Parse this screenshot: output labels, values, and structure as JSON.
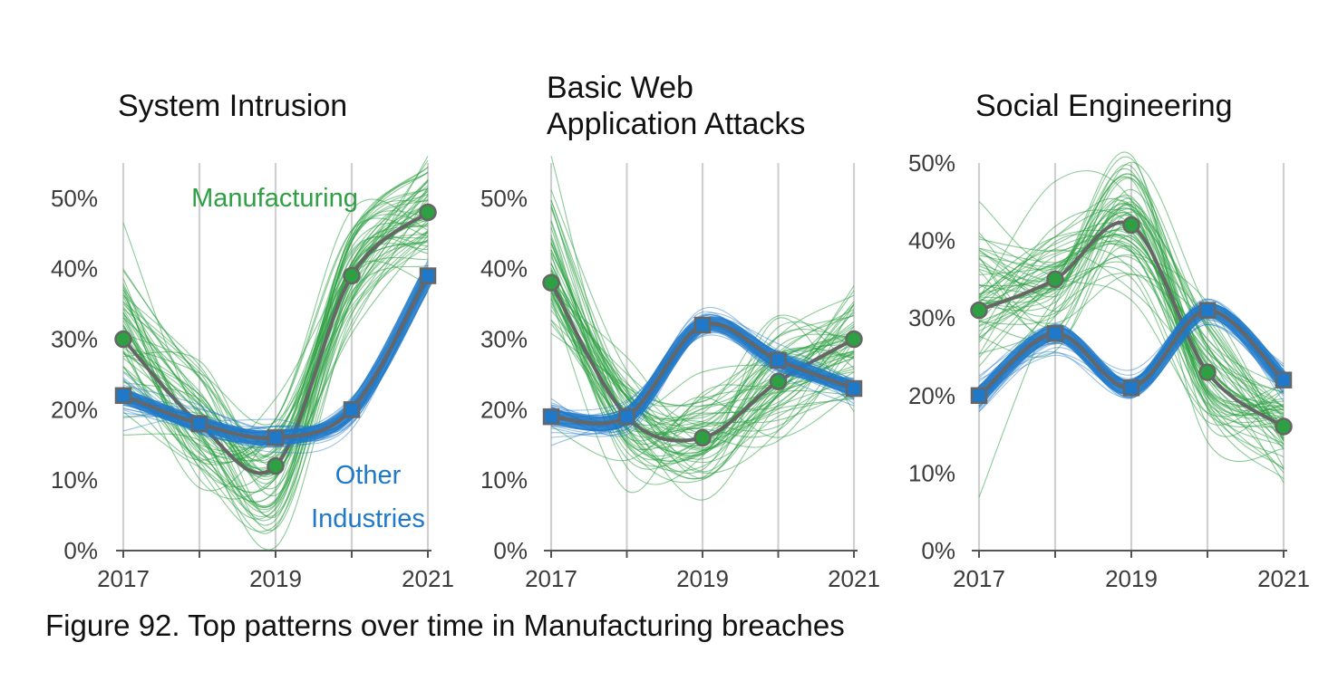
{
  "caption": "Figure 92. Top patterns over time in Manufacturing breaches",
  "colors": {
    "manufacturing": "#2ea043",
    "other_industries": "#1f78c8",
    "median_line": "#666666",
    "gridline": "#d0d0d0",
    "axis": "#555555"
  },
  "chart_data": [
    {
      "type": "line",
      "title_lines": [
        "System Intrusion"
      ],
      "x": [
        2017,
        2018,
        2019,
        2020,
        2021
      ],
      "x_tick_labels": [
        "2017",
        "2019",
        "2021"
      ],
      "y_tick_labels": [
        "0%",
        "10%",
        "20%",
        "30%",
        "40%",
        "50%"
      ],
      "ylim": [
        0,
        0.55
      ],
      "series": [
        {
          "key": "manufacturing",
          "name": "Manufacturing",
          "values": [
            0.3,
            0.18,
            0.12,
            0.39,
            0.48
          ],
          "spread": 0.055
        },
        {
          "key": "other_industries",
          "name": "Other Industries",
          "values": [
            0.22,
            0.18,
            0.16,
            0.2,
            0.39
          ],
          "spread": 0.012
        }
      ],
      "series_labels": {
        "manufacturing": [
          "Manufacturing"
        ],
        "other_industries": [
          "Other",
          "Industries"
        ]
      }
    },
    {
      "type": "line",
      "title_lines": [
        "Basic Web",
        "Application Attacks"
      ],
      "x": [
        2017,
        2018,
        2019,
        2020,
        2021
      ],
      "x_tick_labels": [
        "2017",
        "2019",
        "2021"
      ],
      "y_tick_labels": [
        "0%",
        "10%",
        "20%",
        "30%",
        "40%",
        "50%"
      ],
      "ylim": [
        0,
        0.55
      ],
      "series": [
        {
          "key": "manufacturing",
          "name": "Manufacturing",
          "values": [
            0.38,
            0.19,
            0.16,
            0.24,
            0.3
          ],
          "spread": 0.05
        },
        {
          "key": "other_industries",
          "name": "Other Industries",
          "values": [
            0.19,
            0.19,
            0.32,
            0.27,
            0.23
          ],
          "spread": 0.012
        }
      ]
    },
    {
      "type": "line",
      "title_lines": [
        "Social Engineering"
      ],
      "x": [
        2017,
        2018,
        2019,
        2020,
        2021
      ],
      "x_tick_labels": [
        "2017",
        "2019",
        "2021"
      ],
      "y_tick_labels": [
        "0%",
        "10%",
        "20%",
        "30%",
        "40%",
        "50%"
      ],
      "ylim": [
        0,
        0.5
      ],
      "series": [
        {
          "key": "manufacturing",
          "name": "Manufacturing",
          "values": [
            0.31,
            0.35,
            0.42,
            0.23,
            0.16
          ],
          "spread": 0.05
        },
        {
          "key": "other_industries",
          "name": "Other Industries",
          "values": [
            0.2,
            0.28,
            0.21,
            0.31,
            0.22
          ],
          "spread": 0.012
        }
      ]
    }
  ]
}
